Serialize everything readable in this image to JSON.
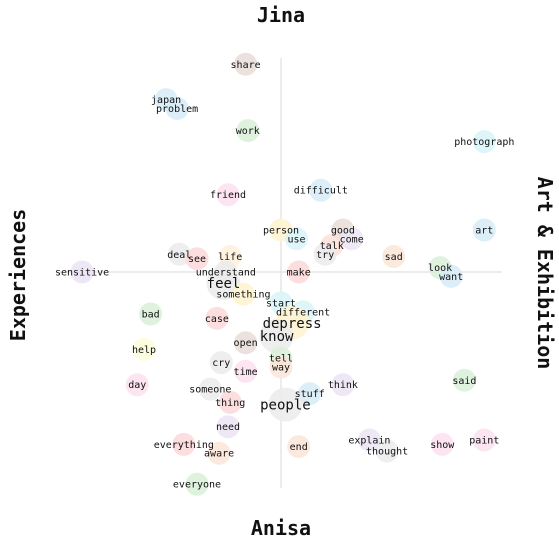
{
  "chart_data": {
    "type": "scatter",
    "title": "",
    "axes": {
      "top": "Jina",
      "bottom": "Anisa",
      "left": "Experiences",
      "right": "Art & Exhibition"
    },
    "xlim": [
      -1,
      1
    ],
    "ylim": [
      -1,
      1
    ],
    "grid": false,
    "points": [
      {
        "word": "share",
        "x": -0.16,
        "y": 0.94,
        "color": "#e8ddd8",
        "weight": 1
      },
      {
        "word": "japan",
        "x": -0.52,
        "y": 0.78,
        "color": "#d6ebf7",
        "weight": 1
      },
      {
        "word": "problem",
        "x": -0.47,
        "y": 0.74,
        "color": "#d6ebf7",
        "weight": 1
      },
      {
        "word": "work",
        "x": -0.15,
        "y": 0.64,
        "color": "#d8f0d8",
        "weight": 1
      },
      {
        "word": "photograph",
        "x": 0.92,
        "y": 0.59,
        "color": "#d8f5f8",
        "weight": 1
      },
      {
        "word": "friend",
        "x": -0.24,
        "y": 0.35,
        "color": "#fce0ef",
        "weight": 1
      },
      {
        "word": "difficult",
        "x": 0.18,
        "y": 0.37,
        "color": "#d6ebf7",
        "weight": 1
      },
      {
        "word": "art",
        "x": 0.92,
        "y": 0.19,
        "color": "#d6ebf7",
        "weight": 1
      },
      {
        "word": "person",
        "x": 0.0,
        "y": 0.19,
        "color": "#fff3cf",
        "weight": 1
      },
      {
        "word": "good",
        "x": 0.28,
        "y": 0.19,
        "color": "#e8ddd8",
        "weight": 1
      },
      {
        "word": "use",
        "x": 0.07,
        "y": 0.15,
        "color": "#d8f5f8",
        "weight": 1
      },
      {
        "word": "come",
        "x": 0.32,
        "y": 0.15,
        "color": "#ebe4f5",
        "weight": 1
      },
      {
        "word": "talk",
        "x": 0.23,
        "y": 0.12,
        "color": "#fce0d8",
        "weight": 1
      },
      {
        "word": "deal",
        "x": -0.46,
        "y": 0.08,
        "color": "#ebebeb",
        "weight": 1
      },
      {
        "word": "see",
        "x": -0.38,
        "y": 0.06,
        "color": "#fcd8d8",
        "weight": 1
      },
      {
        "word": "life",
        "x": -0.23,
        "y": 0.07,
        "color": "#fff0d8",
        "weight": 1
      },
      {
        "word": "try",
        "x": 0.2,
        "y": 0.08,
        "color": "#ebebeb",
        "weight": 1
      },
      {
        "word": "sad",
        "x": 0.51,
        "y": 0.07,
        "color": "#fce5d8",
        "weight": 1
      },
      {
        "word": "sensitive",
        "x": -0.9,
        "y": 0.0,
        "color": "#ebe4f5",
        "weight": 1
      },
      {
        "word": "understand",
        "x": -0.25,
        "y": 0.0,
        "color": "#ebebeb",
        "weight": 1
      },
      {
        "word": "make",
        "x": 0.08,
        "y": 0.0,
        "color": "#fcd8d8",
        "weight": 1
      },
      {
        "word": "look",
        "x": 0.72,
        "y": 0.02,
        "color": "#d8f0d8",
        "weight": 1
      },
      {
        "word": "want",
        "x": 0.77,
        "y": -0.02,
        "color": "#d6ebf7",
        "weight": 1
      },
      {
        "word": "feel",
        "x": -0.26,
        "y": -0.05,
        "color": "#ebebeb",
        "weight": 2
      },
      {
        "word": "something",
        "x": -0.17,
        "y": -0.1,
        "color": "#fff3cf",
        "weight": 1
      },
      {
        "word": "start",
        "x": 0.0,
        "y": -0.14,
        "color": "#d8f5f8",
        "weight": 1
      },
      {
        "word": "different",
        "x": 0.1,
        "y": -0.18,
        "color": "#d8f5f8",
        "weight": 1
      },
      {
        "word": "bad",
        "x": -0.59,
        "y": -0.19,
        "color": "#d8f0d8",
        "weight": 1
      },
      {
        "word": "case",
        "x": -0.29,
        "y": -0.21,
        "color": "#fcd8d8",
        "weight": 1
      },
      {
        "word": "depress",
        "x": 0.05,
        "y": -0.23,
        "color": "#fff3cf",
        "weight": 2
      },
      {
        "word": "know",
        "x": -0.02,
        "y": -0.29,
        "color": "#ebebeb",
        "weight": 2
      },
      {
        "word": "open",
        "x": -0.16,
        "y": -0.32,
        "color": "#e8ddd8",
        "weight": 1
      },
      {
        "word": "help",
        "x": -0.62,
        "y": -0.35,
        "color": "#fbfbd8",
        "weight": 1
      },
      {
        "word": "tell",
        "x": 0.0,
        "y": -0.39,
        "color": "#d8f0d8",
        "weight": 1
      },
      {
        "word": "cry",
        "x": -0.27,
        "y": -0.41,
        "color": "#ebebeb",
        "weight": 1
      },
      {
        "word": "way",
        "x": 0.0,
        "y": -0.43,
        "color": "#fce5d8",
        "weight": 1
      },
      {
        "word": "time",
        "x": -0.16,
        "y": -0.45,
        "color": "#fce0ef",
        "weight": 1
      },
      {
        "word": "day",
        "x": -0.65,
        "y": -0.51,
        "color": "#fce0ef",
        "weight": 1
      },
      {
        "word": "think",
        "x": 0.28,
        "y": -0.51,
        "color": "#ebe4f5",
        "weight": 1
      },
      {
        "word": "said",
        "x": 0.83,
        "y": -0.49,
        "color": "#d8f0d8",
        "weight": 1
      },
      {
        "word": "someone",
        "x": -0.32,
        "y": -0.53,
        "color": "#ebebeb",
        "weight": 1
      },
      {
        "word": "stuff",
        "x": 0.13,
        "y": -0.55,
        "color": "#d6ebf7",
        "weight": 1
      },
      {
        "word": "thing",
        "x": -0.23,
        "y": -0.59,
        "color": "#fcd8d8",
        "weight": 1
      },
      {
        "word": "people",
        "x": 0.02,
        "y": -0.6,
        "color": "#ebebeb",
        "weight": 2
      },
      {
        "word": "need",
        "x": -0.24,
        "y": -0.7,
        "color": "#ebe4f5",
        "weight": 1
      },
      {
        "word": "explain",
        "x": 0.4,
        "y": -0.76,
        "color": "#ebe4f5",
        "weight": 1
      },
      {
        "word": "paint",
        "x": 0.92,
        "y": -0.76,
        "color": "#fce0ef",
        "weight": 1
      },
      {
        "word": "everything",
        "x": -0.44,
        "y": -0.78,
        "color": "#fcd8d8",
        "weight": 1
      },
      {
        "word": "end",
        "x": 0.08,
        "y": -0.79,
        "color": "#fce5d8",
        "weight": 1
      },
      {
        "word": "show",
        "x": 0.73,
        "y": -0.78,
        "color": "#fce0ef",
        "weight": 1
      },
      {
        "word": "thought",
        "x": 0.48,
        "y": -0.81,
        "color": "#ebebeb",
        "weight": 1
      },
      {
        "word": "aware",
        "x": -0.28,
        "y": -0.82,
        "color": "#fce5d8",
        "weight": 1
      },
      {
        "word": "everyone",
        "x": -0.38,
        "y": -0.96,
        "color": "#d8f0d8",
        "weight": 1
      }
    ]
  }
}
